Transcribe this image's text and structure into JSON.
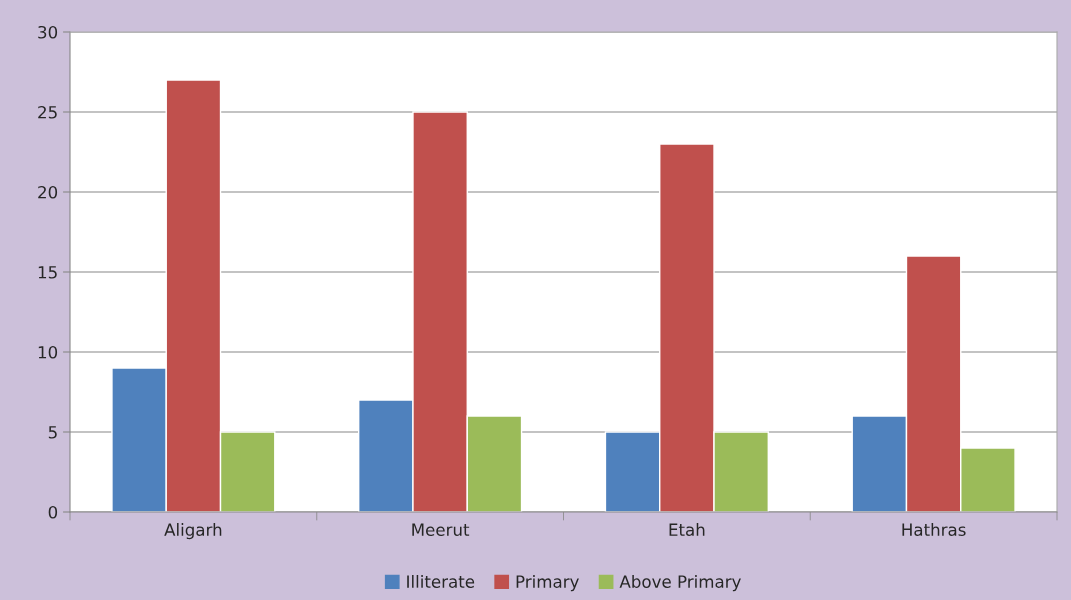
{
  "chart_data": {
    "type": "bar",
    "categories": [
      "Aligarh",
      "Meerut",
      "Etah",
      "Hathras"
    ],
    "series": [
      {
        "name": "Illiterate",
        "color": "#4f81bd",
        "values": [
          9,
          7,
          5,
          6
        ]
      },
      {
        "name": "Primary",
        "color": "#c0504d",
        "values": [
          27,
          25,
          23,
          16
        ]
      },
      {
        "name": "Above Primary",
        "color": "#9bbb59",
        "values": [
          5,
          6,
          5,
          4
        ]
      }
    ],
    "ylim": [
      0,
      30
    ],
    "yticks": [
      0,
      5,
      10,
      15,
      20,
      25,
      30
    ],
    "grid": "y",
    "legend": "bottom"
  }
}
